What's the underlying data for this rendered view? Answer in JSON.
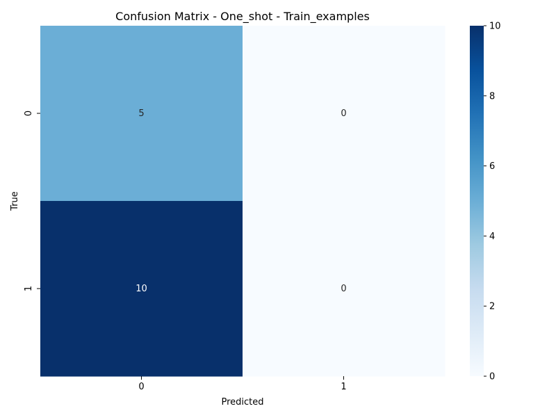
{
  "chart_data": {
    "type": "heatmap",
    "title": "Confusion Matrix - One_shot - Train_examples",
    "xlabel": "Predicted",
    "ylabel": "True",
    "x_categories": [
      "0",
      "1"
    ],
    "y_categories": [
      "0",
      "1"
    ],
    "values": [
      [
        5,
        0
      ],
      [
        10,
        0
      ]
    ],
    "colorbar": {
      "range": [
        0,
        10
      ],
      "ticks": [
        "0",
        "2",
        "4",
        "6",
        "8",
        "10"
      ],
      "colormap": "Blues"
    },
    "annotation_colors": {
      "light_cell": "#262626",
      "dark_cell": "#ffffff"
    }
  }
}
